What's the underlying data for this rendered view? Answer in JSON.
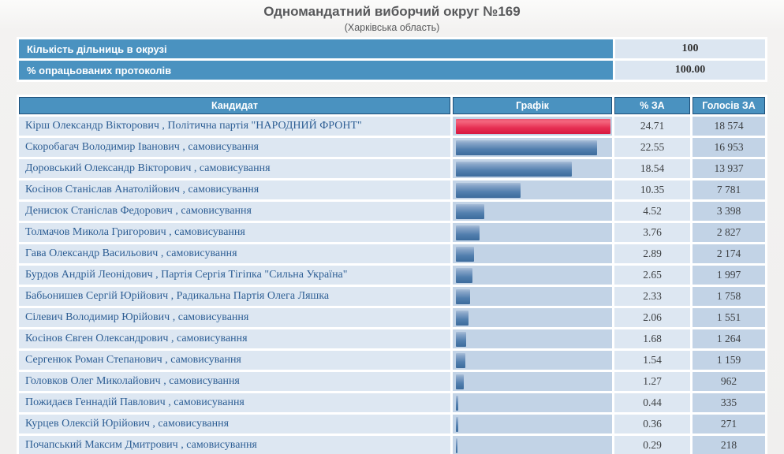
{
  "page": {
    "title": "Одномандатний виборчий округ №169",
    "subtitle": "(Харківська область)"
  },
  "summary": {
    "rows": [
      {
        "label": "Кількість дільниць в окрузі",
        "value": "100"
      },
      {
        "label": "% опрацьованих протоколів",
        "value": "100.00"
      }
    ]
  },
  "results_table": {
    "columns": {
      "candidate": "Кандидат",
      "graph": "Графік",
      "percent": "% ЗА",
      "votes": "Голосів ЗА"
    },
    "name_affiliation_separator": " , ",
    "max_percent": 24.71,
    "rows": [
      {
        "name": "Кірш Олександр Вікторович",
        "affiliation": "Політична партія \"НАРОДНИЙ ФРОНТ\"",
        "percent": "24.71",
        "votes": "18 574",
        "bar_color": "red"
      },
      {
        "name": "Скоробагач Володимир Іванович",
        "affiliation": "самовисування",
        "percent": "22.55",
        "votes": "16 953",
        "bar_color": "blue"
      },
      {
        "name": "Доровський Олександр Вікторович",
        "affiliation": "самовисування",
        "percent": "18.54",
        "votes": "13 937",
        "bar_color": "blue"
      },
      {
        "name": "Косінов Станіслав Анатолійович",
        "affiliation": "самовисування",
        "percent": "10.35",
        "votes": "7 781",
        "bar_color": "blue"
      },
      {
        "name": "Денисюк Станіслав Федорович",
        "affiliation": "самовисування",
        "percent": "4.52",
        "votes": "3 398",
        "bar_color": "blue"
      },
      {
        "name": "Толмачов Микола Григорович",
        "affiliation": "самовисування",
        "percent": "3.76",
        "votes": "2 827",
        "bar_color": "blue"
      },
      {
        "name": "Гава Олександр Васильович",
        "affiliation": "самовисування",
        "percent": "2.89",
        "votes": "2 174",
        "bar_color": "blue"
      },
      {
        "name": "Бурдов Андрій Леонідович",
        "affiliation": "Партія Сергія Тігіпка \"Сильна Україна\"",
        "percent": "2.65",
        "votes": "1 997",
        "bar_color": "blue"
      },
      {
        "name": "Бабьонишев Сергій Юрійович",
        "affiliation": "Радикальна Партія Олега Ляшка",
        "percent": "2.33",
        "votes": "1 758",
        "bar_color": "blue"
      },
      {
        "name": "Сілевич Володимир Юрійович",
        "affiliation": "самовисування",
        "percent": "2.06",
        "votes": "1 551",
        "bar_color": "blue"
      },
      {
        "name": "Косінов Євген Олександрович",
        "affiliation": "самовисування",
        "percent": "1.68",
        "votes": "1 264",
        "bar_color": "blue"
      },
      {
        "name": "Сергенюк Роман Степанович",
        "affiliation": "самовисування",
        "percent": "1.54",
        "votes": "1 159",
        "bar_color": "blue"
      },
      {
        "name": "Головков Олег Миколайович",
        "affiliation": "самовисування",
        "percent": "1.27",
        "votes": "962",
        "bar_color": "blue"
      },
      {
        "name": "Пожидаєв Геннадій Павлович",
        "affiliation": "самовисування",
        "percent": "0.44",
        "votes": "335",
        "bar_color": "blue"
      },
      {
        "name": "Курцев Олексій Юрійович",
        "affiliation": "самовисування",
        "percent": "0.36",
        "votes": "271",
        "bar_color": "blue"
      },
      {
        "name": "Почапський Максим Дмитрович",
        "affiliation": "самовисування",
        "percent": "0.29",
        "votes": "218",
        "bar_color": "blue"
      }
    ]
  },
  "colors": {
    "header_bg": "#4a92c0",
    "header_border": "#1d4e77",
    "cell_light": "#dde7f2",
    "cell_medium": "#c2d3e6",
    "bar_blue": "#4a77a8",
    "bar_red": "#e62e52",
    "candidate_text": "#2d5e94",
    "title_text": "#58595b"
  },
  "chart_data": {
    "type": "bar",
    "orientation": "horizontal",
    "title": "Одномандатний виборчий округ №169 (Харківська область)",
    "categories": [
      "Кірш Олександр Вікторович",
      "Скоробагач Володимир Іванович",
      "Доровський Олександр Вікторович",
      "Косінов Станіслав Анатолійович",
      "Денисюк Станіслав Федорович",
      "Толмачов Микола Григорович",
      "Гава Олександр Васильович",
      "Бурдов Андрій Леонідович",
      "Бабьонишев Сергій Юрійович",
      "Сілевич Володимир Юрійович",
      "Косінов Євген Олександрович",
      "Сергенюк Роман Степанович",
      "Головков Олег Миколайович",
      "Пожидаєв Геннадій Павлович",
      "Курцев Олексій Юрійович",
      "Почапський Максим Дмитрович"
    ],
    "series": [
      {
        "name": "% ЗА",
        "values": [
          24.71,
          22.55,
          18.54,
          10.35,
          4.52,
          3.76,
          2.89,
          2.65,
          2.33,
          2.06,
          1.68,
          1.54,
          1.27,
          0.44,
          0.36,
          0.29
        ]
      },
      {
        "name": "Голосів ЗА",
        "values": [
          18574,
          16953,
          13937,
          7781,
          3398,
          2827,
          2174,
          1997,
          1758,
          1551,
          1264,
          1159,
          962,
          335,
          271,
          218
        ]
      }
    ],
    "xlim": [
      0,
      24.71
    ],
    "grid": false,
    "legend_position": "none"
  }
}
